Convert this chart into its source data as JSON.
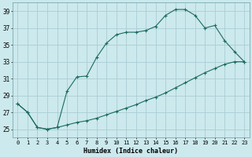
{
  "title": "",
  "xlabel": "Humidex (Indice chaleur)",
  "background_color": "#cce9ed",
  "grid_color": "#aacdd4",
  "line_color": "#1a6b5e",
  "xlim": [
    -0.5,
    23.5
  ],
  "ylim": [
    24.0,
    40.0
  ],
  "yticks": [
    25,
    27,
    29,
    31,
    33,
    35,
    37,
    39
  ],
  "xticks": [
    0,
    1,
    2,
    3,
    4,
    5,
    6,
    7,
    8,
    9,
    10,
    11,
    12,
    13,
    14,
    15,
    16,
    17,
    18,
    19,
    20,
    21,
    22,
    23
  ],
  "curve1_x": [
    0,
    1,
    2,
    3,
    4,
    5,
    6,
    7,
    8,
    9,
    10,
    11,
    12,
    13,
    14,
    15,
    16,
    17,
    18,
    19,
    20,
    21,
    22,
    23
  ],
  "curve1_y": [
    28.0,
    27.0,
    25.2,
    25.0,
    25.2,
    29.5,
    31.2,
    31.3,
    33.5,
    35.2,
    36.2,
    36.5,
    36.5,
    36.7,
    37.2,
    38.5,
    39.2,
    39.2,
    38.5,
    37.0,
    37.3,
    35.5,
    34.2,
    33.0
  ],
  "curve2_x": [
    0,
    1,
    2,
    3,
    4,
    5,
    6,
    7,
    8,
    9,
    10,
    11,
    12,
    13,
    14,
    15,
    16,
    17,
    18,
    19,
    20,
    21,
    22,
    23
  ],
  "curve2_y": [
    28.0,
    27.0,
    25.2,
    25.0,
    25.2,
    25.5,
    25.8,
    26.0,
    26.3,
    26.7,
    27.1,
    27.5,
    27.9,
    28.4,
    28.8,
    29.3,
    29.9,
    30.5,
    31.1,
    31.7,
    32.2,
    32.7,
    33.0,
    33.0
  ]
}
